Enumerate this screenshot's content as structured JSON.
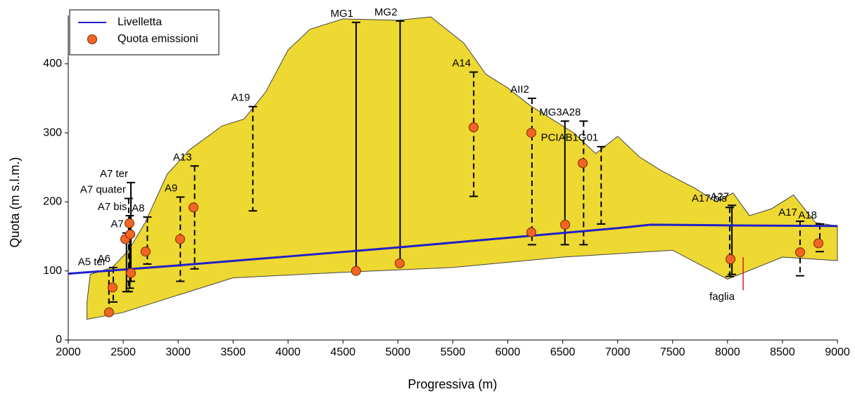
{
  "chart_data": {
    "type": "profile",
    "x_label": "Progressiva (m)",
    "y_label": "Quota (m s.l.m.)",
    "xlim": [
      2000,
      9000
    ],
    "ylim": [
      0,
      470
    ],
    "xticks": [
      2000,
      2500,
      3000,
      3500,
      4000,
      4500,
      5000,
      5500,
      6000,
      6500,
      7000,
      7500,
      8000,
      8500,
      9000
    ],
    "yticks": [
      0,
      100,
      200,
      300,
      400
    ],
    "terrain": {
      "color": "#eed832",
      "x": [
        2170,
        2200,
        2400,
        2550,
        2700,
        2900,
        3100,
        3400,
        3600,
        3800,
        4000,
        4200,
        4500,
        5000,
        5300,
        5600,
        5800,
        6000,
        6200,
        6400,
        6600,
        6800,
        7000,
        7200,
        7400,
        7700,
        7900,
        8050,
        8200,
        8400,
        8600,
        8800,
        9000
      ],
      "top": [
        55,
        95,
        105,
        130,
        170,
        240,
        275,
        310,
        320,
        360,
        420,
        450,
        465,
        463,
        468,
        430,
        385,
        365,
        340,
        320,
        300,
        270,
        295,
        265,
        245,
        220,
        200,
        213,
        180,
        190,
        210,
        170,
        165
      ],
      "bottom_x": [
        2170,
        2500,
        3500,
        4500,
        5500,
        6500,
        7500,
        8000,
        8500,
        9000
      ],
      "bottom": [
        30,
        40,
        90,
        98,
        105,
        120,
        130,
        88,
        120,
        115
      ]
    },
    "series": [
      {
        "name": "Livelletta",
        "type": "line",
        "color": "#2020c8",
        "x": [
          2000,
          3000,
          4000,
          5000,
          6000,
          7000,
          7300,
          8000,
          9000
        ],
        "values": [
          96,
          108,
          121,
          134,
          148,
          162,
          167,
          166,
          165
        ]
      },
      {
        "name": "Quota emissioni",
        "type": "scatter",
        "color": "#f26522",
        "x": [
          2371,
          2403,
          2570,
          2519,
          2564,
          2557,
          2704,
          3018,
          3140,
          4619,
          5016,
          5689,
          6214,
          6214,
          6522,
          6682,
          8027,
          8661,
          8827
        ],
        "values": [
          40,
          76,
          97,
          146,
          153,
          169,
          128,
          146,
          192,
          100,
          111,
          308,
          300,
          156,
          167,
          256,
          117,
          127,
          140
        ]
      }
    ],
    "boreholes": [
      {
        "label": "A5 ter",
        "x": 2370,
        "top": 100,
        "bottom": 40,
        "dashed": true
      },
      {
        "label": "A6",
        "x": 2410,
        "top": 105,
        "bottom": 55,
        "dashed": true
      },
      {
        "label": "A7",
        "x": 2530,
        "top": 155,
        "bottom": 70,
        "dashed": false
      },
      {
        "label": "A7 bis",
        "x": 2560,
        "top": 180,
        "bottom": 75,
        "dashed": false
      },
      {
        "label": "A7 quater",
        "x": 2550,
        "top": 205,
        "bottom": 70,
        "dashed": true
      },
      {
        "label": "A7 ter",
        "x": 2570,
        "top": 228,
        "bottom": 85,
        "dashed": false
      },
      {
        "label": "A8",
        "x": 2720,
        "top": 178,
        "bottom": 110,
        "dashed": true
      },
      {
        "label": "A9",
        "x": 3020,
        "top": 207,
        "bottom": 85,
        "dashed": true
      },
      {
        "label": "A13",
        "x": 3150,
        "top": 252,
        "bottom": 103,
        "dashed": true
      },
      {
        "label": "A19",
        "x": 3680,
        "top": 338,
        "bottom": 187,
        "dashed": true
      },
      {
        "label": "MG1",
        "x": 4620,
        "top": 460,
        "bottom": 97,
        "dashed": false
      },
      {
        "label": "MG2",
        "x": 5020,
        "top": 462,
        "bottom": 108,
        "dashed": false
      },
      {
        "label": "A14",
        "x": 5690,
        "top": 388,
        "bottom": 208,
        "dashed": true
      },
      {
        "label": "AII2",
        "x": 6220,
        "top": 350,
        "bottom": 138,
        "dashed": true
      },
      {
        "label": "MG3",
        "x": 6520,
        "top": 317,
        "bottom": 138,
        "dashed": false
      },
      {
        "label": "A28",
        "x": 6690,
        "top": 317,
        "bottom": 138,
        "dashed": true
      },
      {
        "label": "PCIAB1G01",
        "x": 6850,
        "top": 280,
        "bottom": 168,
        "dashed": true
      },
      {
        "label": "A17 bis",
        "x": 8020,
        "top": 192,
        "bottom": 92,
        "dashed": true
      },
      {
        "label": "A27",
        "x": 8040,
        "top": 195,
        "bottom": 95,
        "dashed": false
      },
      {
        "label": "A17",
        "x": 8660,
        "top": 172,
        "bottom": 93,
        "dashed": true
      },
      {
        "label": "A18",
        "x": 8840,
        "top": 168,
        "bottom": 128,
        "dashed": true
      }
    ],
    "annotation": {
      "text": "faglia",
      "x": 7950,
      "y": 70,
      "color": "#d42020"
    },
    "legend": "top-left"
  }
}
